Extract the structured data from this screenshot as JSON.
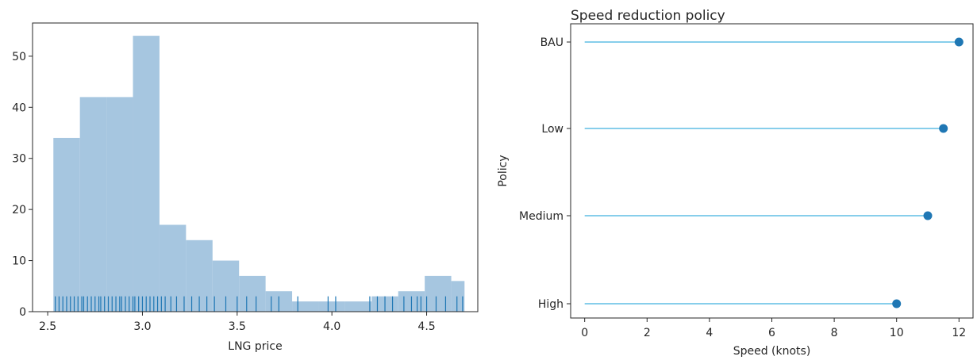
{
  "chart_data": [
    {
      "type": "histogram",
      "title": "",
      "xlabel": "LNG price",
      "ylabel": "",
      "xlim": [
        2.42,
        4.77
      ],
      "ylim": [
        0,
        56.5
      ],
      "xticks": [
        2.5,
        3.0,
        3.5,
        4.0,
        4.5
      ],
      "xtick_labels": [
        "2.5",
        "3.0",
        "3.5",
        "4.0",
        "4.5"
      ],
      "yticks": [
        0,
        10,
        20,
        30,
        40,
        50
      ],
      "ytick_labels": [
        "0",
        "10",
        "20",
        "30",
        "40",
        "50"
      ],
      "bins": [
        {
          "x0": 2.53,
          "x1": 2.67,
          "count": 34
        },
        {
          "x0": 2.67,
          "x1": 2.81,
          "count": 42
        },
        {
          "x0": 2.81,
          "x1": 2.95,
          "count": 42
        },
        {
          "x0": 2.95,
          "x1": 3.09,
          "count": 54
        },
        {
          "x0": 3.09,
          "x1": 3.23,
          "count": 17
        },
        {
          "x0": 3.23,
          "x1": 3.37,
          "count": 14
        },
        {
          "x0": 3.37,
          "x1": 3.51,
          "count": 10
        },
        {
          "x0": 3.51,
          "x1": 3.65,
          "count": 7
        },
        {
          "x0": 3.65,
          "x1": 3.79,
          "count": 4
        },
        {
          "x0": 3.79,
          "x1": 3.93,
          "count": 2
        },
        {
          "x0": 3.93,
          "x1": 4.07,
          "count": 2
        },
        {
          "x0": 4.07,
          "x1": 4.21,
          "count": 2
        },
        {
          "x0": 4.21,
          "x1": 4.35,
          "count": 3
        },
        {
          "x0": 4.35,
          "x1": 4.49,
          "count": 4
        },
        {
          "x0": 4.49,
          "x1": 4.63,
          "count": 7
        },
        {
          "x0": 4.63,
          "x1": 4.7,
          "count": 6
        }
      ],
      "rug": [
        2.54,
        2.56,
        2.58,
        2.6,
        2.62,
        2.64,
        2.66,
        2.68,
        2.69,
        2.71,
        2.73,
        2.75,
        2.77,
        2.78,
        2.8,
        2.82,
        2.84,
        2.86,
        2.88,
        2.89,
        2.91,
        2.93,
        2.95,
        2.96,
        2.98,
        3.0,
        3.02,
        3.04,
        3.06,
        3.08,
        3.1,
        3.12,
        3.15,
        3.18,
        3.22,
        3.26,
        3.3,
        3.34,
        3.38,
        3.44,
        3.5,
        3.55,
        3.6,
        3.68,
        3.72,
        3.82,
        3.98,
        4.02,
        4.2,
        4.24,
        4.28,
        4.32,
        4.38,
        4.42,
        4.45,
        4.47,
        4.5,
        4.55,
        4.6,
        4.66,
        4.69
      ],
      "rug_height": 3,
      "grid": false,
      "bar_color": "#a6c6e0",
      "rug_color": "#1f77b4"
    },
    {
      "type": "lollipop",
      "title": "Speed reduction policy",
      "xlabel": "Speed (knots)",
      "ylabel": "Policy",
      "xlim": [
        -0.45,
        12.45
      ],
      "xticks": [
        0,
        2,
        4,
        6,
        8,
        10,
        12
      ],
      "xtick_labels": [
        "0",
        "2",
        "4",
        "6",
        "8",
        "10",
        "12"
      ],
      "categories": [
        "BAU",
        "Low",
        "Medium",
        "High"
      ],
      "values": [
        12,
        11.5,
        11,
        10
      ],
      "grid": false,
      "stem_color": "#87ceeb",
      "marker_color": "#1f77b4"
    }
  ]
}
